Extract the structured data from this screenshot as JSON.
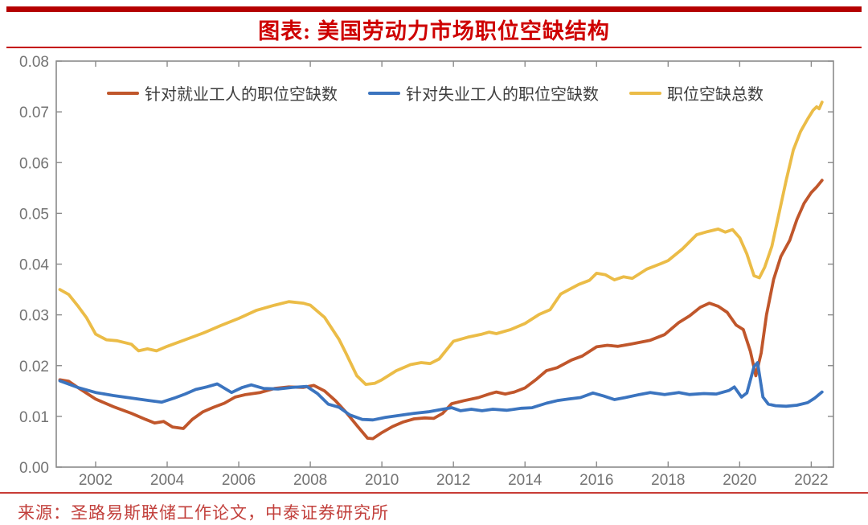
{
  "header": {
    "title": "图表: 美国劳动力市场职位空缺结构"
  },
  "source": {
    "text": "来源：圣路易斯联储工作论文，中泰证券研究所"
  },
  "colors": {
    "header_bar": "#b50000",
    "title_text": "#ce0000",
    "source_text": "#c2403c",
    "axis": "#8a8a8a",
    "tick_label": "#737373",
    "series_employed": "#c0562b",
    "series_unemployed": "#3b74bf",
    "series_total": "#ebbc47"
  },
  "chart_data": {
    "type": "line",
    "title": "图表: 美国劳动力市场职位空缺结构",
    "xlabel": "",
    "ylabel": "",
    "xlim": [
      2000.9,
      2022.62
    ],
    "ylim": [
      0,
      0.08
    ],
    "grid": false,
    "legend_position": "top-left-inside",
    "x_ticks": [
      2002,
      2004,
      2006,
      2008,
      2010,
      2012,
      2014,
      2016,
      2018,
      2020,
      2022
    ],
    "y_ticks": [
      0,
      0.01,
      0.02,
      0.03,
      0.04,
      0.05,
      0.06,
      0.07,
      0.08
    ],
    "y_tick_labels": [
      "0.00",
      "0.01",
      "0.02",
      "0.03",
      "0.04",
      "0.05",
      "0.06",
      "0.07",
      "0.08"
    ],
    "series": [
      {
        "name": "针对就业工人的职位空缺数",
        "color": "#c0562b",
        "points": [
          [
            2001.0,
            0.0172
          ],
          [
            2001.25,
            0.0169
          ],
          [
            2001.5,
            0.0157
          ],
          [
            2002.0,
            0.0134
          ],
          [
            2002.5,
            0.0119
          ],
          [
            2003.0,
            0.0106
          ],
          [
            2003.4,
            0.0094
          ],
          [
            2003.65,
            0.0087
          ],
          [
            2003.9,
            0.009
          ],
          [
            2004.15,
            0.0079
          ],
          [
            2004.45,
            0.0076
          ],
          [
            2004.7,
            0.0094
          ],
          [
            2005.0,
            0.0109
          ],
          [
            2005.3,
            0.0118
          ],
          [
            2005.6,
            0.0126
          ],
          [
            2005.9,
            0.0138
          ],
          [
            2006.2,
            0.0143
          ],
          [
            2006.6,
            0.0147
          ],
          [
            2007.0,
            0.0155
          ],
          [
            2007.4,
            0.0158
          ],
          [
            2007.8,
            0.0157
          ],
          [
            2008.1,
            0.0161
          ],
          [
            2008.4,
            0.015
          ],
          [
            2008.7,
            0.0131
          ],
          [
            2009.0,
            0.0108
          ],
          [
            2009.3,
            0.0082
          ],
          [
            2009.6,
            0.0057
          ],
          [
            2009.75,
            0.0056
          ],
          [
            2010.0,
            0.0068
          ],
          [
            2010.3,
            0.008
          ],
          [
            2010.6,
            0.0089
          ],
          [
            2010.9,
            0.0095
          ],
          [
            2011.2,
            0.0097
          ],
          [
            2011.45,
            0.0096
          ],
          [
            2011.7,
            0.0106
          ],
          [
            2011.95,
            0.0125
          ],
          [
            2012.3,
            0.0131
          ],
          [
            2012.7,
            0.0137
          ],
          [
            2013.0,
            0.0144
          ],
          [
            2013.2,
            0.0148
          ],
          [
            2013.45,
            0.0144
          ],
          [
            2013.7,
            0.0148
          ],
          [
            2014.0,
            0.0156
          ],
          [
            2014.3,
            0.0172
          ],
          [
            2014.6,
            0.019
          ],
          [
            2014.9,
            0.0196
          ],
          [
            2015.3,
            0.0211
          ],
          [
            2015.6,
            0.0219
          ],
          [
            2016.0,
            0.0237
          ],
          [
            2016.3,
            0.024
          ],
          [
            2016.6,
            0.0238
          ],
          [
            2017.0,
            0.0243
          ],
          [
            2017.5,
            0.025
          ],
          [
            2017.9,
            0.0261
          ],
          [
            2018.3,
            0.0285
          ],
          [
            2018.6,
            0.0298
          ],
          [
            2018.9,
            0.0315
          ],
          [
            2019.15,
            0.0323
          ],
          [
            2019.4,
            0.0317
          ],
          [
            2019.65,
            0.0305
          ],
          [
            2019.9,
            0.028
          ],
          [
            2020.1,
            0.0271
          ],
          [
            2020.3,
            0.0228
          ],
          [
            2020.45,
            0.018
          ],
          [
            2020.6,
            0.0225
          ],
          [
            2020.75,
            0.03
          ],
          [
            2020.95,
            0.037
          ],
          [
            2021.15,
            0.0415
          ],
          [
            2021.4,
            0.0447
          ],
          [
            2021.6,
            0.0488
          ],
          [
            2021.8,
            0.052
          ],
          [
            2022.0,
            0.0541
          ],
          [
            2022.15,
            0.0552
          ],
          [
            2022.3,
            0.0565
          ]
        ]
      },
      {
        "name": "针对失业工人的职位空缺数",
        "color": "#3b74bf",
        "points": [
          [
            2001.0,
            0.017
          ],
          [
            2001.5,
            0.0157
          ],
          [
            2002.0,
            0.0147
          ],
          [
            2002.5,
            0.0141
          ],
          [
            2003.0,
            0.0136
          ],
          [
            2003.5,
            0.0131
          ],
          [
            2003.85,
            0.0128
          ],
          [
            2004.2,
            0.0136
          ],
          [
            2004.5,
            0.0144
          ],
          [
            2004.8,
            0.0153
          ],
          [
            2005.1,
            0.0158
          ],
          [
            2005.4,
            0.0164
          ],
          [
            2005.8,
            0.0147
          ],
          [
            2006.1,
            0.0157
          ],
          [
            2006.35,
            0.0162
          ],
          [
            2006.7,
            0.0155
          ],
          [
            2007.1,
            0.0154
          ],
          [
            2007.5,
            0.0157
          ],
          [
            2007.9,
            0.0159
          ],
          [
            2008.2,
            0.0145
          ],
          [
            2008.5,
            0.0124
          ],
          [
            2008.8,
            0.0118
          ],
          [
            2009.1,
            0.0103
          ],
          [
            2009.45,
            0.0094
          ],
          [
            2009.75,
            0.0093
          ],
          [
            2010.1,
            0.0098
          ],
          [
            2010.5,
            0.0102
          ],
          [
            2010.9,
            0.0106
          ],
          [
            2011.3,
            0.0109
          ],
          [
            2011.7,
            0.0114
          ],
          [
            2011.95,
            0.0117
          ],
          [
            2012.2,
            0.0111
          ],
          [
            2012.5,
            0.0114
          ],
          [
            2012.8,
            0.0111
          ],
          [
            2013.1,
            0.0114
          ],
          [
            2013.5,
            0.0112
          ],
          [
            2013.9,
            0.0116
          ],
          [
            2014.2,
            0.0117
          ],
          [
            2014.6,
            0.0126
          ],
          [
            2014.9,
            0.0131
          ],
          [
            2015.2,
            0.0134
          ],
          [
            2015.55,
            0.0137
          ],
          [
            2015.9,
            0.0146
          ],
          [
            2016.2,
            0.014
          ],
          [
            2016.5,
            0.0133
          ],
          [
            2016.8,
            0.0137
          ],
          [
            2017.2,
            0.0143
          ],
          [
            2017.5,
            0.0147
          ],
          [
            2017.9,
            0.0143
          ],
          [
            2018.3,
            0.0147
          ],
          [
            2018.6,
            0.0143
          ],
          [
            2019.0,
            0.0145
          ],
          [
            2019.35,
            0.0144
          ],
          [
            2019.7,
            0.0151
          ],
          [
            2019.85,
            0.0158
          ],
          [
            2020.05,
            0.0138
          ],
          [
            2020.2,
            0.0146
          ],
          [
            2020.4,
            0.0198
          ],
          [
            2020.5,
            0.0206
          ],
          [
            2020.65,
            0.0138
          ],
          [
            2020.8,
            0.0124
          ],
          [
            2021.0,
            0.0121
          ],
          [
            2021.3,
            0.012
          ],
          [
            2021.6,
            0.0122
          ],
          [
            2021.9,
            0.0127
          ],
          [
            2022.1,
            0.0136
          ],
          [
            2022.3,
            0.0148
          ]
        ]
      },
      {
        "name": "职位空缺总数",
        "color": "#ebbc47",
        "points": [
          [
            2001.0,
            0.035
          ],
          [
            2001.25,
            0.034
          ],
          [
            2001.5,
            0.0318
          ],
          [
            2001.75,
            0.0294
          ],
          [
            2002.0,
            0.0262
          ],
          [
            2002.3,
            0.0251
          ],
          [
            2002.6,
            0.0249
          ],
          [
            2003.0,
            0.0242
          ],
          [
            2003.2,
            0.0229
          ],
          [
            2003.45,
            0.0233
          ],
          [
            2003.7,
            0.0229
          ],
          [
            2004.0,
            0.0238
          ],
          [
            2004.5,
            0.0251
          ],
          [
            2005.0,
            0.0264
          ],
          [
            2005.5,
            0.0279
          ],
          [
            2006.0,
            0.0293
          ],
          [
            2006.5,
            0.0309
          ],
          [
            2007.0,
            0.0319
          ],
          [
            2007.4,
            0.0326
          ],
          [
            2007.8,
            0.0323
          ],
          [
            2008.0,
            0.0319
          ],
          [
            2008.4,
            0.0295
          ],
          [
            2008.8,
            0.0252
          ],
          [
            2009.0,
            0.0224
          ],
          [
            2009.3,
            0.018
          ],
          [
            2009.55,
            0.0163
          ],
          [
            2009.8,
            0.0165
          ],
          [
            2010.0,
            0.0172
          ],
          [
            2010.4,
            0.019
          ],
          [
            2010.8,
            0.0202
          ],
          [
            2011.1,
            0.0206
          ],
          [
            2011.35,
            0.0204
          ],
          [
            2011.6,
            0.0213
          ],
          [
            2012.0,
            0.0248
          ],
          [
            2012.4,
            0.0256
          ],
          [
            2012.8,
            0.0262
          ],
          [
            2013.0,
            0.0266
          ],
          [
            2013.2,
            0.0263
          ],
          [
            2013.6,
            0.0271
          ],
          [
            2014.0,
            0.0283
          ],
          [
            2014.4,
            0.0301
          ],
          [
            2014.7,
            0.031
          ],
          [
            2015.0,
            0.0341
          ],
          [
            2015.5,
            0.036
          ],
          [
            2015.8,
            0.0368
          ],
          [
            2016.0,
            0.0382
          ],
          [
            2016.25,
            0.0379
          ],
          [
            2016.5,
            0.0369
          ],
          [
            2016.75,
            0.0375
          ],
          [
            2017.0,
            0.0372
          ],
          [
            2017.4,
            0.039
          ],
          [
            2017.8,
            0.0401
          ],
          [
            2018.0,
            0.0407
          ],
          [
            2018.4,
            0.043
          ],
          [
            2018.8,
            0.0458
          ],
          [
            2019.1,
            0.0464
          ],
          [
            2019.4,
            0.0469
          ],
          [
            2019.6,
            0.0463
          ],
          [
            2019.8,
            0.0468
          ],
          [
            2020.0,
            0.0452
          ],
          [
            2020.2,
            0.042
          ],
          [
            2020.4,
            0.0377
          ],
          [
            2020.55,
            0.0373
          ],
          [
            2020.7,
            0.0394
          ],
          [
            2020.9,
            0.0435
          ],
          [
            2021.1,
            0.05
          ],
          [
            2021.3,
            0.0565
          ],
          [
            2021.5,
            0.0625
          ],
          [
            2021.7,
            0.0661
          ],
          [
            2021.9,
            0.0686
          ],
          [
            2022.05,
            0.0703
          ],
          [
            2022.15,
            0.071
          ],
          [
            2022.22,
            0.0706
          ],
          [
            2022.3,
            0.0719
          ]
        ]
      }
    ]
  }
}
